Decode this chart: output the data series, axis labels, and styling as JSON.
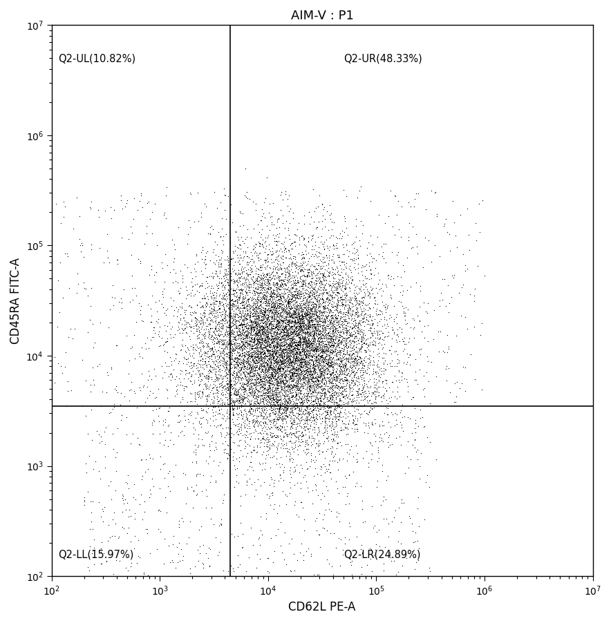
{
  "title": "AIM-V : P1",
  "xlabel": "CD62L PE-A",
  "ylabel": "CD45RA FITC-A",
  "xlim": [
    100,
    10000000
  ],
  "ylim": [
    100,
    10000000
  ],
  "gate_x": 4500,
  "gate_y": 3500,
  "quadrant_labels": {
    "UL": "Q2-UL(10.82%)",
    "UR": "Q2-UR(48.33%)",
    "LL": "Q2-LL(15.97%)",
    "LR": "Q2-LR(24.89%)"
  },
  "dot_color": "#000000",
  "background_color": "#ffffff",
  "n_cells": 15000,
  "seed": 7
}
